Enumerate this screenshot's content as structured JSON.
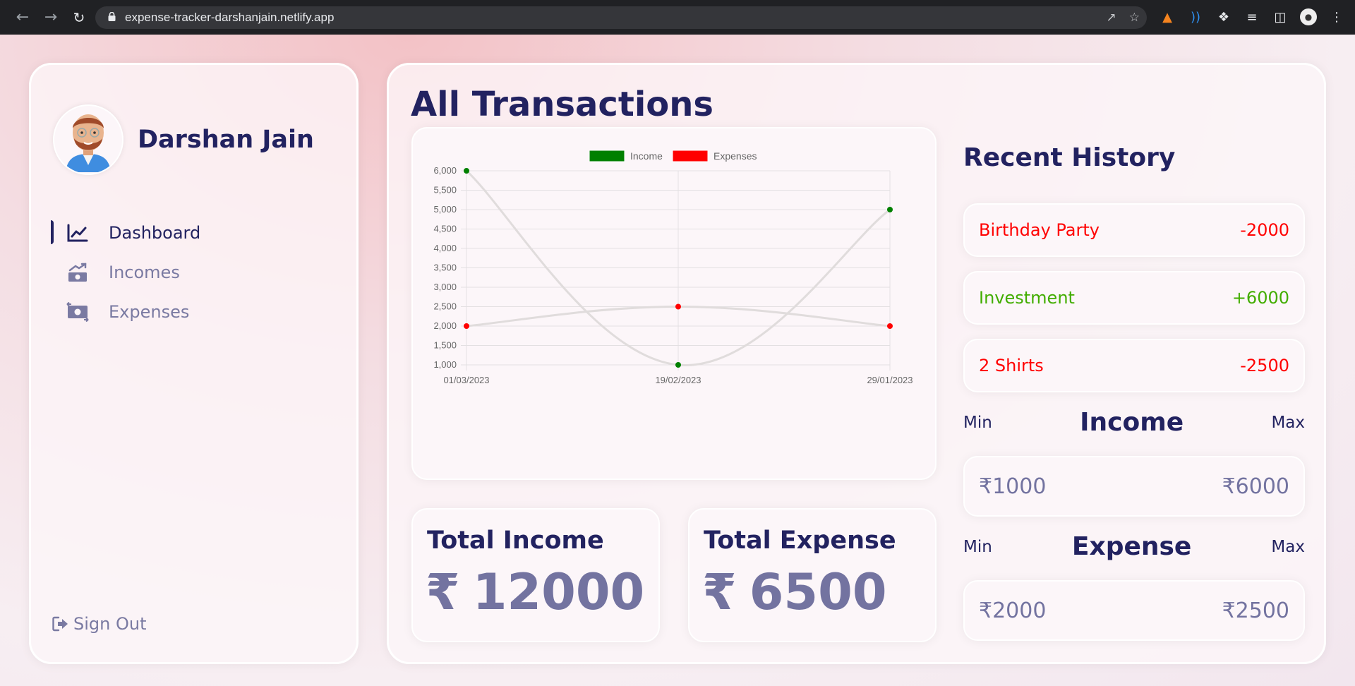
{
  "browser": {
    "url": "expense-tracker-darshanjain.netlify.app",
    "icons": [
      "back-icon",
      "forward-icon",
      "reload-icon",
      "lock-icon",
      "share-icon",
      "star-icon",
      "metamask-icon",
      "wave-extension-icon",
      "puzzle-icon",
      "reading-list-icon",
      "side-panel-icon",
      "profile-icon",
      "kebab-menu-icon"
    ]
  },
  "sidebar": {
    "user_name": "Darshan Jain",
    "menu": [
      {
        "label": "Dashboard",
        "icon": "chart-line-icon",
        "active": true
      },
      {
        "label": "Incomes",
        "icon": "money-bill-trend-up-icon",
        "active": false
      },
      {
        "label": "Expenses",
        "icon": "money-bill-transfer-icon",
        "active": false
      }
    ],
    "sign_out_label": "Sign Out"
  },
  "main": {
    "title": "All Transactions",
    "total_income": {
      "label": "Total Income",
      "currency": "₹",
      "value": "12000"
    },
    "total_expense": {
      "label": "Total Expense",
      "currency": "₹",
      "value": "6500"
    },
    "recent_history": {
      "title": "Recent History",
      "items": [
        {
          "title": "Birthday Party",
          "amount": "-2000",
          "type": "expense"
        },
        {
          "title": "Investment",
          "amount": "+6000",
          "type": "income"
        },
        {
          "title": "2 Shirts",
          "amount": "-2500",
          "type": "expense"
        }
      ]
    },
    "income_range": {
      "min_label": "Min",
      "title": "Income",
      "max_label": "Max",
      "min": "₹1000",
      "max": "₹6000"
    },
    "expense_range": {
      "min_label": "Min",
      "title": "Expense",
      "max_label": "Max",
      "min": "₹2000",
      "max": "₹2500"
    }
  },
  "colors": {
    "income": "#008000",
    "expense": "#ff0000",
    "line": "#e0dcdc",
    "grid": "#e3e0e2"
  },
  "chart_data": {
    "type": "line",
    "categories": [
      "01/03/2023",
      "19/02/2023",
      "29/01/2023"
    ],
    "series": [
      {
        "name": "Income",
        "values": [
          6000,
          1000,
          5000
        ],
        "color": "#008000"
      },
      {
        "name": "Expenses",
        "values": [
          2000,
          2500,
          2000
        ],
        "color": "#ff0000"
      }
    ],
    "ylim": [
      1000,
      6000
    ],
    "yticks": [
      1000,
      1500,
      2000,
      2500,
      3000,
      3500,
      4000,
      4500,
      5000,
      5500,
      6000
    ],
    "legend": "top",
    "grid": true
  }
}
